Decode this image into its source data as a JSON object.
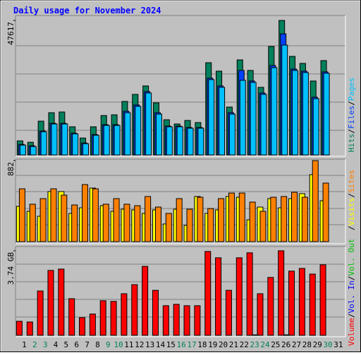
{
  "chart_data": [
    {
      "type": "bar",
      "title": "Daily usage for November 2024",
      "ylim": [
        0,
        47617
      ],
      "yticks": [
        47617
      ],
      "series": [
        {
          "name": "Hits",
          "color": "#00805c",
          "values": [
            4986,
            4487,
            11966,
            14958,
            15207,
            9972,
            5983,
            9972,
            13961,
            14210,
            18947,
            21440,
            24431,
            18448,
            12465,
            10969,
            12216,
            11468,
            32658,
            29667,
            16952,
            33656,
            29916,
            23933,
            38392,
            47617,
            34902,
            32409,
            26177,
            33406,
            null
          ]
        },
        {
          "name": "Files",
          "color": "#0040ff",
          "values": [
            3740,
            3240,
            8480,
            11220,
            11220,
            7730,
            4240,
            7230,
            10720,
            10720,
            15460,
            17700,
            22440,
            14960,
            10220,
            10220,
            9720,
            9720,
            27170,
            24430,
            14960,
            29916,
            26180,
            21940,
            31660,
            42880,
            30410,
            29670,
            20440,
            29420,
            null
          ]
        },
        {
          "name": "Pages",
          "color": "#00c0ff",
          "values": [
            3490,
            2992,
            8227,
            10969,
            10969,
            7479,
            3989,
            6980,
            10471,
            10471,
            14958,
            17202,
            21938,
            14459,
            9972,
            9972,
            9473,
            9473,
            26675,
            23933,
            14459,
            26426,
            25678,
            21440,
            30913,
            38891,
            29916,
            29168,
            19944,
            28919,
            null
          ]
        }
      ]
    },
    {
      "type": "bar",
      "ylim": [
        0,
        882
      ],
      "yticks": [
        882
      ],
      "series": [
        {
          "name": "Visits",
          "color": "#ffff00",
          "values": [
            384,
            330,
            276,
            545,
            545,
            307,
            368,
            583,
            391,
            330,
            353,
            345,
            307,
            345,
            192,
            353,
            176,
            491,
            307,
            345,
            491,
            483,
            238,
            376,
            468,
            368,
            468,
            522,
            729,
            445,
            null
          ]
        },
        {
          "name": "Sites",
          "color": "#ff8000",
          "values": [
            575,
            407,
            468,
            575,
            506,
            399,
            621,
            575,
            407,
            468,
            407,
            391,
            491,
            376,
            307,
            468,
            353,
            483,
            360,
            468,
            529,
            529,
            430,
            330,
            483,
            491,
            537,
            483,
            882,
            637,
            null
          ]
        }
      ]
    },
    {
      "type": "bar",
      "ylim": [
        0,
        3.74
      ],
      "yticks": [
        {
          "value": 3.74,
          "label": "3.74 GB"
        }
      ],
      "categories": [
        "1",
        "2",
        "3",
        "4",
        "5",
        "6",
        "7",
        "8",
        "9",
        "10",
        "11",
        "12",
        "13",
        "14",
        "15",
        "16",
        "17",
        "18",
        "19",
        "20",
        "21",
        "22",
        "23",
        "24",
        "25",
        "26",
        "27",
        "28",
        "29",
        "30",
        "31"
      ],
      "category_colors": [
        "#000000",
        "#00805c",
        "#00805c",
        "#000000",
        "#000000",
        "#000000",
        "#000000",
        "#000000",
        "#00805c",
        "#00805c",
        "#000000",
        "#000000",
        "#000000",
        "#000000",
        "#000000",
        "#00805c",
        "#00805c",
        "#000000",
        "#000000",
        "#000000",
        "#000000",
        "#000000",
        "#00805c",
        "#00805c",
        "#000000",
        "#000000",
        "#000000",
        "#000000",
        "#000000",
        "#00805c",
        "#000000"
      ],
      "series": [
        {
          "name": "Volume",
          "color": "#ff0000",
          "values": [
            0.62,
            0.59,
            1.96,
            2.87,
            2.93,
            1.62,
            0.78,
            0.94,
            1.53,
            1.5,
            1.84,
            2.24,
            3.05,
            1.99,
            1.31,
            1.37,
            1.31,
            1.31,
            3.71,
            3.43,
            1.99,
            3.43,
            3.65,
            1.84,
            2.56,
            3.74,
            2.84,
            2.96,
            2.71,
            3.12,
            null
          ]
        },
        {
          "name": "Vol. In",
          "color": "#0000ff",
          "values": [
            0,
            0,
            0,
            0,
            0,
            0,
            0,
            0,
            0,
            0,
            0,
            0,
            0,
            0,
            0,
            0,
            0,
            0,
            0,
            0,
            0,
            0,
            0.02,
            0,
            0,
            0.02,
            0,
            0,
            0,
            0,
            null
          ]
        },
        {
          "name": "Vol. Out",
          "color": "#00c000",
          "values": [
            0,
            0,
            0,
            0,
            0,
            0,
            0,
            0,
            0,
            0,
            0,
            0,
            0,
            0,
            0,
            0,
            0,
            0,
            0,
            0,
            0,
            0,
            0,
            0,
            0,
            0,
            0,
            0,
            0,
            0,
            null
          ]
        }
      ]
    }
  ]
}
